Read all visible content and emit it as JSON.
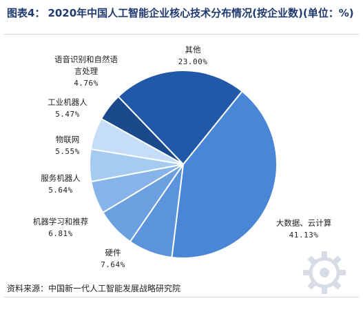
{
  "header": {
    "figure_label": "图表4：",
    "title": "2020年中国人工智能企业核心技术分布情况(按企业数)(单位：%)"
  },
  "chart_data": {
    "type": "pie",
    "title": "2020年中国人工智能企业核心技术分布情况(按企业数)(单位：%)",
    "unit": "%",
    "slices": [
      {
        "name": "大数据、云计算",
        "value": 41.13,
        "value_label": "41.13%",
        "color": "#4a86d6"
      },
      {
        "name": "硬件",
        "value": 7.64,
        "value_label": "7.64%",
        "color": "#5b94dc"
      },
      {
        "name": "机器学习和推荐",
        "value": 6.81,
        "value_label": "6.81%",
        "color": "#6aa0e0"
      },
      {
        "name": "服务机器人",
        "value": 5.64,
        "value_label": "5.64%",
        "color": "#86b4e8"
      },
      {
        "name": "物联网",
        "value": 5.55,
        "value_label": "5.55%",
        "color": "#a6cbf0"
      },
      {
        "name": "工业机器人",
        "value": 5.47,
        "value_label": "5.47%",
        "color": "#c5ddf6"
      },
      {
        "name": "语音识别和自然语言处理",
        "value": 4.76,
        "value_label": "4.76%",
        "color": "#1a4a8c"
      },
      {
        "name": "其他",
        "value": 23.0,
        "value_label": "23.00%",
        "color": "#2158a8"
      }
    ]
  },
  "labels": [
    {
      "name": "大数据、云计算",
      "pct": "41.13%"
    },
    {
      "name": "硬件",
      "pct": "7.64%"
    },
    {
      "name": "机器学习和推荐",
      "pct": "6.81%"
    },
    {
      "name": "服务机器人",
      "pct": "5.64%"
    },
    {
      "name": "物联网",
      "pct": "5.55%"
    },
    {
      "name": "工业机器人",
      "pct": "5.47%"
    },
    {
      "name_line1": "语音识别和自然语",
      "name_line2": "言处理",
      "pct": "4.76%"
    },
    {
      "name": "其他",
      "pct": "23.00%"
    }
  ],
  "footer": {
    "source": "资料来源：中国新一代人工智能发展战略研究院"
  },
  "watermark": {
    "icon": "gear-icon"
  }
}
